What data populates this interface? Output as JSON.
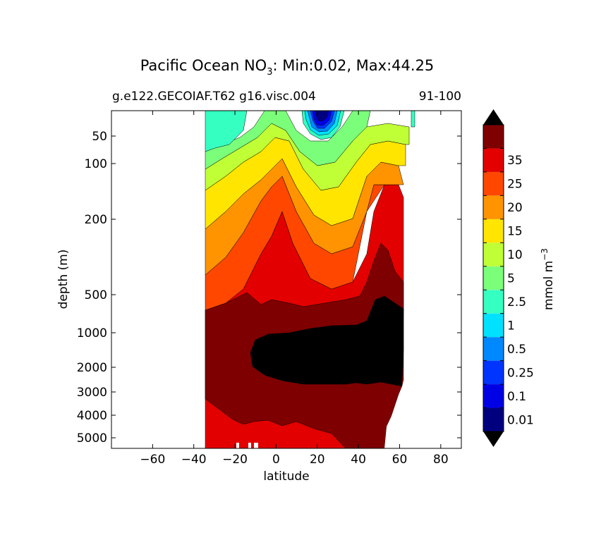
{
  "chart_data": {
    "type": "contourf",
    "title": "Pacific Ocean NO",
    "title_subscript": "3",
    "title_suffix": ": Min:0.02, Max:44.25",
    "subtitle_left": "g.e122.GECOIAF.T62 g16.visc.004",
    "subtitle_right": "91-100",
    "xlabel": "latitude",
    "ylabel": "depth (m)",
    "xlim": [
      -80,
      90
    ],
    "x_ticks": [
      -60,
      -40,
      -20,
      0,
      20,
      40,
      60,
      80
    ],
    "x_tick_labels": [
      "−60",
      "−40",
      "−20",
      "0",
      "20",
      "40",
      "60",
      "80"
    ],
    "y_scale": "nonlinear (stretched depth)",
    "y_ticks": [
      50,
      100,
      200,
      500,
      1000,
      2000,
      3000,
      4000,
      5000
    ],
    "y_tick_labels": [
      "50",
      "100",
      "200",
      "500",
      "1000",
      "2000",
      "3000",
      "4000",
      "5000"
    ],
    "ylim": [
      5400,
      20
    ],
    "data_extent_lat": [
      -34,
      67
    ],
    "colorbar": {
      "label": "mmol m",
      "label_superscript": "−3",
      "extend": "both",
      "levels": [
        "0.01",
        "0.1",
        "0.25",
        "0.5",
        "1",
        "2.5",
        "5",
        "10",
        "15",
        "20",
        "25",
        "35"
      ],
      "colors": [
        "#00007f",
        "#0000e5",
        "#0034ff",
        "#0088ff",
        "#00e1ff",
        "#35ffc1",
        "#7bff7b",
        "#c0ff36",
        "#ffe500",
        "#ff9300",
        "#ff4700",
        "#e30000",
        "#7f0000"
      ],
      "under_color": "#000000",
      "over_color": "#000000"
    },
    "fields": [
      {
        "name": "surface-minimum",
        "lat": 22,
        "depth_m": 30,
        "value": 0.02
      },
      {
        "name": "deep-maximum",
        "lat": 40,
        "depth_m": 1800,
        "value": 44.25
      }
    ]
  }
}
